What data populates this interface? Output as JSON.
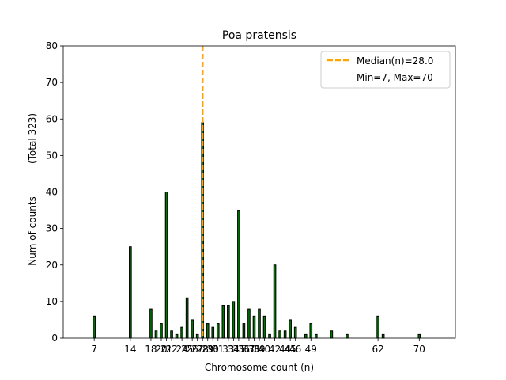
{
  "chart_data": {
    "type": "bar",
    "title": "Poa pratensis",
    "xlabel": "Chromosome count (n)",
    "ylabel": "Num of counts",
    "ylabel_total": "(Total 323)",
    "xlim": [
      1,
      77
    ],
    "ylim": [
      0,
      80
    ],
    "yticks": [
      0,
      10,
      20,
      30,
      40,
      50,
      60,
      70,
      80
    ],
    "xticks": [
      7,
      14,
      18,
      20,
      21,
      22,
      24,
      25,
      26,
      27,
      28,
      29,
      30,
      31,
      33,
      34,
      35,
      36,
      37,
      38,
      39,
      40,
      42,
      44,
      45,
      46,
      49,
      62,
      70
    ],
    "xtick_labels": [
      "7",
      "14",
      "18",
      "20",
      "21",
      "22",
      "24",
      "25",
      "26",
      "27",
      "28",
      "29",
      "30",
      "31",
      "33",
      "34",
      "35",
      "36",
      "37",
      "38",
      "39",
      "40",
      "42",
      "44",
      "45",
      "46",
      "49",
      "62",
      "70"
    ],
    "bars": [
      {
        "x": 7,
        "value": 6
      },
      {
        "x": 14,
        "value": 25
      },
      {
        "x": 18,
        "value": 8
      },
      {
        "x": 19,
        "value": 2
      },
      {
        "x": 20,
        "value": 4
      },
      {
        "x": 21,
        "value": 40
      },
      {
        "x": 22,
        "value": 2
      },
      {
        "x": 23,
        "value": 1
      },
      {
        "x": 24,
        "value": 3
      },
      {
        "x": 25,
        "value": 11
      },
      {
        "x": 26,
        "value": 5
      },
      {
        "x": 27,
        "value": 1
      },
      {
        "x": 28,
        "value": 59
      },
      {
        "x": 29,
        "value": 4
      },
      {
        "x": 30,
        "value": 3
      },
      {
        "x": 31,
        "value": 4
      },
      {
        "x": 32,
        "value": 9
      },
      {
        "x": 33,
        "value": 9
      },
      {
        "x": 34,
        "value": 10
      },
      {
        "x": 35,
        "value": 35
      },
      {
        "x": 36,
        "value": 4
      },
      {
        "x": 37,
        "value": 8
      },
      {
        "x": 38,
        "value": 6
      },
      {
        "x": 39,
        "value": 8
      },
      {
        "x": 40,
        "value": 6
      },
      {
        "x": 41,
        "value": 1
      },
      {
        "x": 42,
        "value": 20
      },
      {
        "x": 43,
        "value": 2
      },
      {
        "x": 44,
        "value": 2
      },
      {
        "x": 45,
        "value": 5
      },
      {
        "x": 46,
        "value": 3
      },
      {
        "x": 48,
        "value": 1
      },
      {
        "x": 49,
        "value": 4
      },
      {
        "x": 50,
        "value": 1
      },
      {
        "x": 53,
        "value": 2
      },
      {
        "x": 56,
        "value": 1
      },
      {
        "x": 62,
        "value": 6
      },
      {
        "x": 63,
        "value": 1
      },
      {
        "x": 70,
        "value": 1
      }
    ],
    "median": 28.0,
    "legend": {
      "position": "top-right",
      "median_label": "Median(n)=28.0",
      "minmax_label": "Min=7, Max=70"
    },
    "colors": {
      "bar_fill": "#007700",
      "bar_edge": "#000000",
      "median_line": "#ffa500"
    }
  }
}
